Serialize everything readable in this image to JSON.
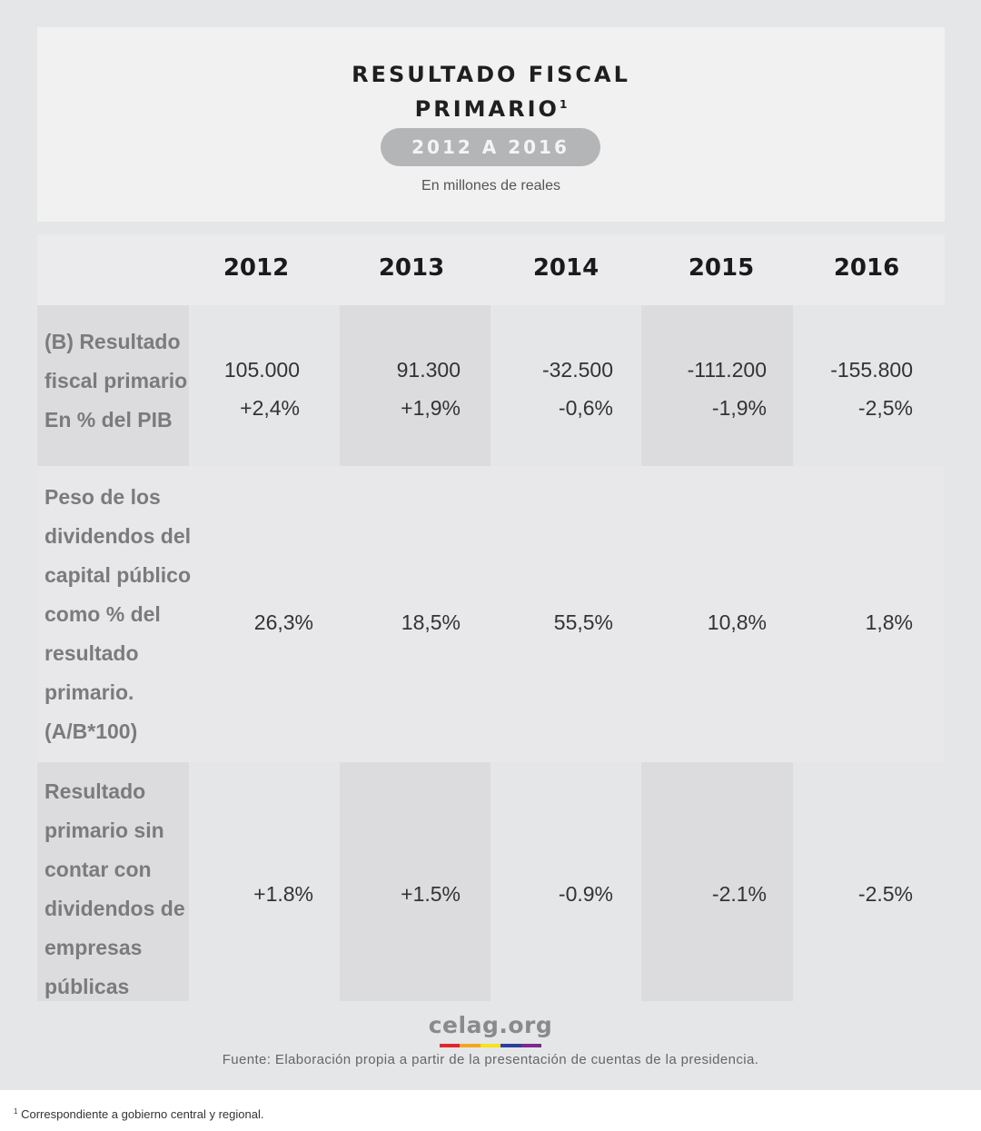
{
  "header": {
    "title_line1": "RESULTADO FISCAL",
    "title_line2": "PRIMARIO",
    "title_footnote_mark": "1",
    "period": "2012 A 2016",
    "unit": "En millones de reales"
  },
  "table": {
    "years": [
      "2012",
      "2013",
      "2014",
      "2015",
      "2016"
    ],
    "rows": [
      {
        "label": "(B) Resultado fiscal primario En % del PIB",
        "values": [
          "105.000",
          "91.300",
          "-32.500",
          "-111.200",
          "-155.800"
        ],
        "percents": [
          "+2,4%",
          "+1,9%",
          "-0,6%",
          "-1,9%",
          "-2,5%"
        ]
      },
      {
        "label": "Peso de los dividendos del capital público como % del resultado primario. (A/B*100)",
        "values": [
          "26,3%",
          "18,5%",
          "55,5%",
          "10,8%",
          "1,8%"
        ]
      },
      {
        "label": "Resultado primario sin contar con dividendos de empresas públicas",
        "values": [
          "+1.8%",
          "+1.5%",
          "-0.9%",
          "-2.1%",
          "-2.5%"
        ]
      }
    ]
  },
  "logo": {
    "text": "celag.org",
    "bar_colors": [
      "#e0262e",
      "#f2a81d",
      "#f7e21b",
      "#2b3f9c",
      "#7a2b8c"
    ]
  },
  "source": "Fuente: Elaboración propia a partir de la presentación de cuentas de la presidencia.",
  "footnote": {
    "mark": "1",
    "text": "Correspondiente a gobierno central y regional."
  },
  "colors": {
    "background": "#e5e6e8",
    "panel": "#f1f1f2",
    "pill": "#b4b5b7"
  }
}
